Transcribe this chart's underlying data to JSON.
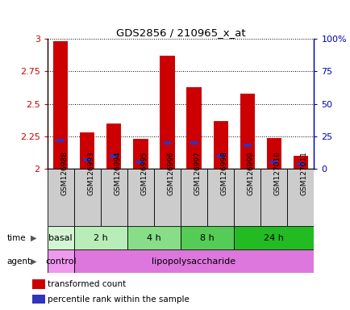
{
  "title": "GDS2856 / 210965_x_at",
  "samples": [
    "GSM126988",
    "GSM126993",
    "GSM126994",
    "GSM126995",
    "GSM126996",
    "GSM126997",
    "GSM126998",
    "GSM126999",
    "GSM127010",
    "GSM127011"
  ],
  "transformed_count": [
    2.98,
    2.28,
    2.35,
    2.23,
    2.87,
    2.63,
    2.37,
    2.58,
    2.24,
    2.1
  ],
  "percentile_rank_pct": [
    22,
    7,
    10,
    5,
    20,
    20,
    10,
    18,
    5,
    4
  ],
  "ylim_left": [
    2.0,
    3.0
  ],
  "ylim_right": [
    0,
    100
  ],
  "yticks_left": [
    2.0,
    2.25,
    2.5,
    2.75,
    3.0
  ],
  "yticks_right": [
    0,
    25,
    50,
    75,
    100
  ],
  "ytick_labels_left": [
    "2",
    "2.25",
    "2.5",
    "2.75",
    "3"
  ],
  "ytick_labels_right": [
    "0",
    "25",
    "50",
    "75",
    "100%"
  ],
  "bar_color_red": "#cc0000",
  "bar_color_blue": "#3333bb",
  "bar_width": 0.55,
  "blue_bar_width": 0.3,
  "time_groups": [
    {
      "label": "basal",
      "start": 0,
      "end": 1
    },
    {
      "label": "2 h",
      "start": 1,
      "end": 3
    },
    {
      "label": "4 h",
      "start": 3,
      "end": 5
    },
    {
      "label": "8 h",
      "start": 5,
      "end": 7
    },
    {
      "label": "24 h",
      "start": 7,
      "end": 10
    }
  ],
  "time_colors": [
    "#d4f5d4",
    "#b8edb8",
    "#88dd88",
    "#55cc55",
    "#22bb22"
  ],
  "agent_groups": [
    {
      "label": "control",
      "start": 0,
      "end": 1
    },
    {
      "label": "lipopolysaccharide",
      "start": 1,
      "end": 10
    }
  ],
  "agent_colors": [
    "#ee99ee",
    "#dd77dd"
  ],
  "left_axis_color": "#cc0000",
  "right_axis_color": "#0000bb",
  "label_row_color": "#cccccc",
  "legend_red_label": "transformed count",
  "legend_blue_label": "percentile rank within the sample"
}
